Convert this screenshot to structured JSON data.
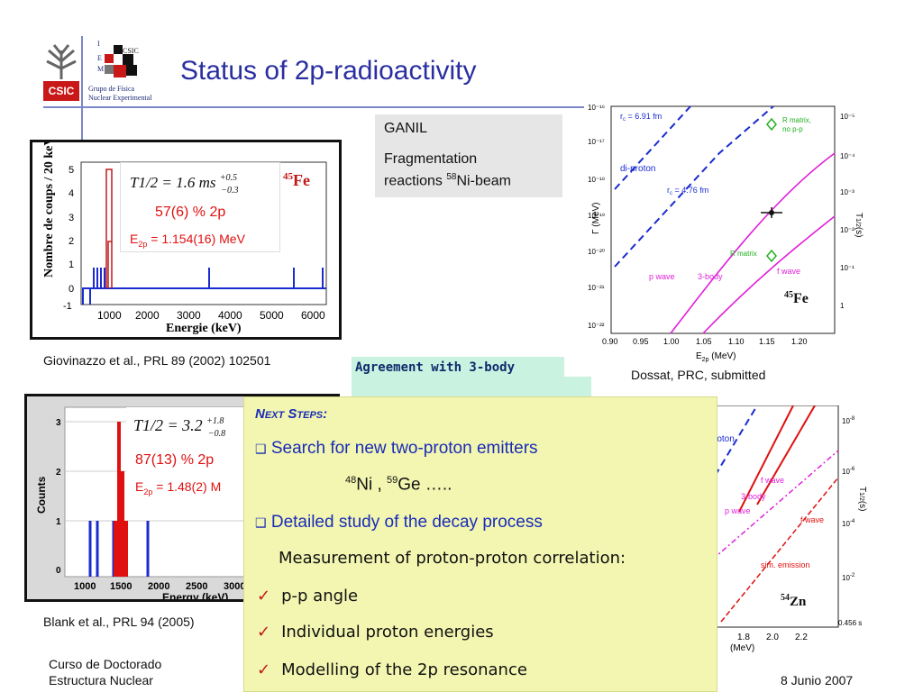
{
  "header": {
    "title": "Status of 2p-radioactivity",
    "logo_csic": "CSIC",
    "logo_iem_i": "I",
    "logo_iem_e": "E",
    "logo_iem_m": "M",
    "logo_group": "Grupo de Física",
    "logo_group2": "Nuclear Experimental"
  },
  "fe_plot": {
    "ylabel": "Nombre de coups / 20 keV",
    "xlabel": "Energie (keV)",
    "formula": "T1/2 = 1.6 ms",
    "formula_plus": "+0.5",
    "formula_minus": "−0.3",
    "nucleus_mass": "45",
    "nucleus": "Fe",
    "branching": "57(6) % 2p",
    "energy": "E",
    "energy_sub": "2p",
    "energy_val": " = 1.154(16) MeV",
    "caption": "Giovinazzo et al.,  PRL 89 (2002) 102501"
  },
  "ni_plot": {
    "ylabel": "Counts",
    "xlabel": "Energy (keV)",
    "formula": "T1/2 = 3.2",
    "formula_plus": "+1.8",
    "formula_minus": "−0.8",
    "branching": "87(13) % 2p",
    "energy": "E",
    "energy_sub": "2p",
    "energy_val": " = 1.48(2) M",
    "caption": "Blank et al.,  PRL 94 (2005)"
  },
  "ganil": {
    "line1": "GANIL",
    "line2": "Fragmentation",
    "line3a": "reactions ",
    "line3sup": "58",
    "line3b": "Ni-beam"
  },
  "agreement": "Agreement with 3-body",
  "theory_plot": {
    "xlabel": "E",
    "xlabel_sub": "2p",
    "xlabel_unit": " (MeV)",
    "ylabel_left": "Γ (MeV)",
    "ylabel_right": "T",
    "ylabel_right_sub": "1/2",
    "ylabel_right_unit": "(s)",
    "label_rc1": "r",
    "label_rc1b": " = 6.91 fm",
    "label_rc2": "r",
    "label_rc2b": " = 4.76 fm",
    "label_diproton": "di-proton",
    "label_rmatrix": "R matrix,",
    "label_rmatrix2": "no p-p",
    "label_rmatrix3": "R matrix",
    "label_pwave": "p wave",
    "label_3body": "3-body",
    "label_fwave": "f wave",
    "nucleus_mass": "45",
    "nucleus": "Fe",
    "caption": "Dossat, PRC, submitted"
  },
  "zn_plot": {
    "label_proton": "roton",
    "label_fwave": "f wave",
    "label_3body": "3-body",
    "label_pwave": "p wave",
    "label_fwave2": "f wave",
    "label_sim": "sim. emission",
    "nucleus_mass": "54",
    "nucleus": "Zn",
    "xlabel": "(MeV)",
    "ylabel": "T",
    "ylabel_sub": "1/2",
    "ylabel_unit": "(s)",
    "xticks": [
      "1.8",
      "2.0",
      "2.2"
    ],
    "yticks_right": [
      "10",
      "10",
      "10",
      "10",
      "0.456 s"
    ]
  },
  "next_steps": {
    "heading": "Next Steps:",
    "item1": "Search for new two-proton emitters",
    "nuclei": "Ni , ",
    "nuclei_ge": "Ge …..",
    "nuclei_ni_mass": "48",
    "nuclei_ge_mass": "59",
    "item2": "Detailed study of the decay process",
    "item3": "Measurement of proton-proton correlation:",
    "check1": "p-p angle",
    "check2": "Individual proton energies",
    "check3": "Modelling of the 2p resonance"
  },
  "footer": {
    "course1": "Curso de Doctorado",
    "course2": "Estructura Nuclear",
    "date": "8 Junio 2007"
  },
  "colors": {
    "title": "#2a2fa0",
    "accent_red": "#e01010",
    "histogram_blue": "#1a2cd0",
    "next_bg": "#f2f6b0"
  }
}
